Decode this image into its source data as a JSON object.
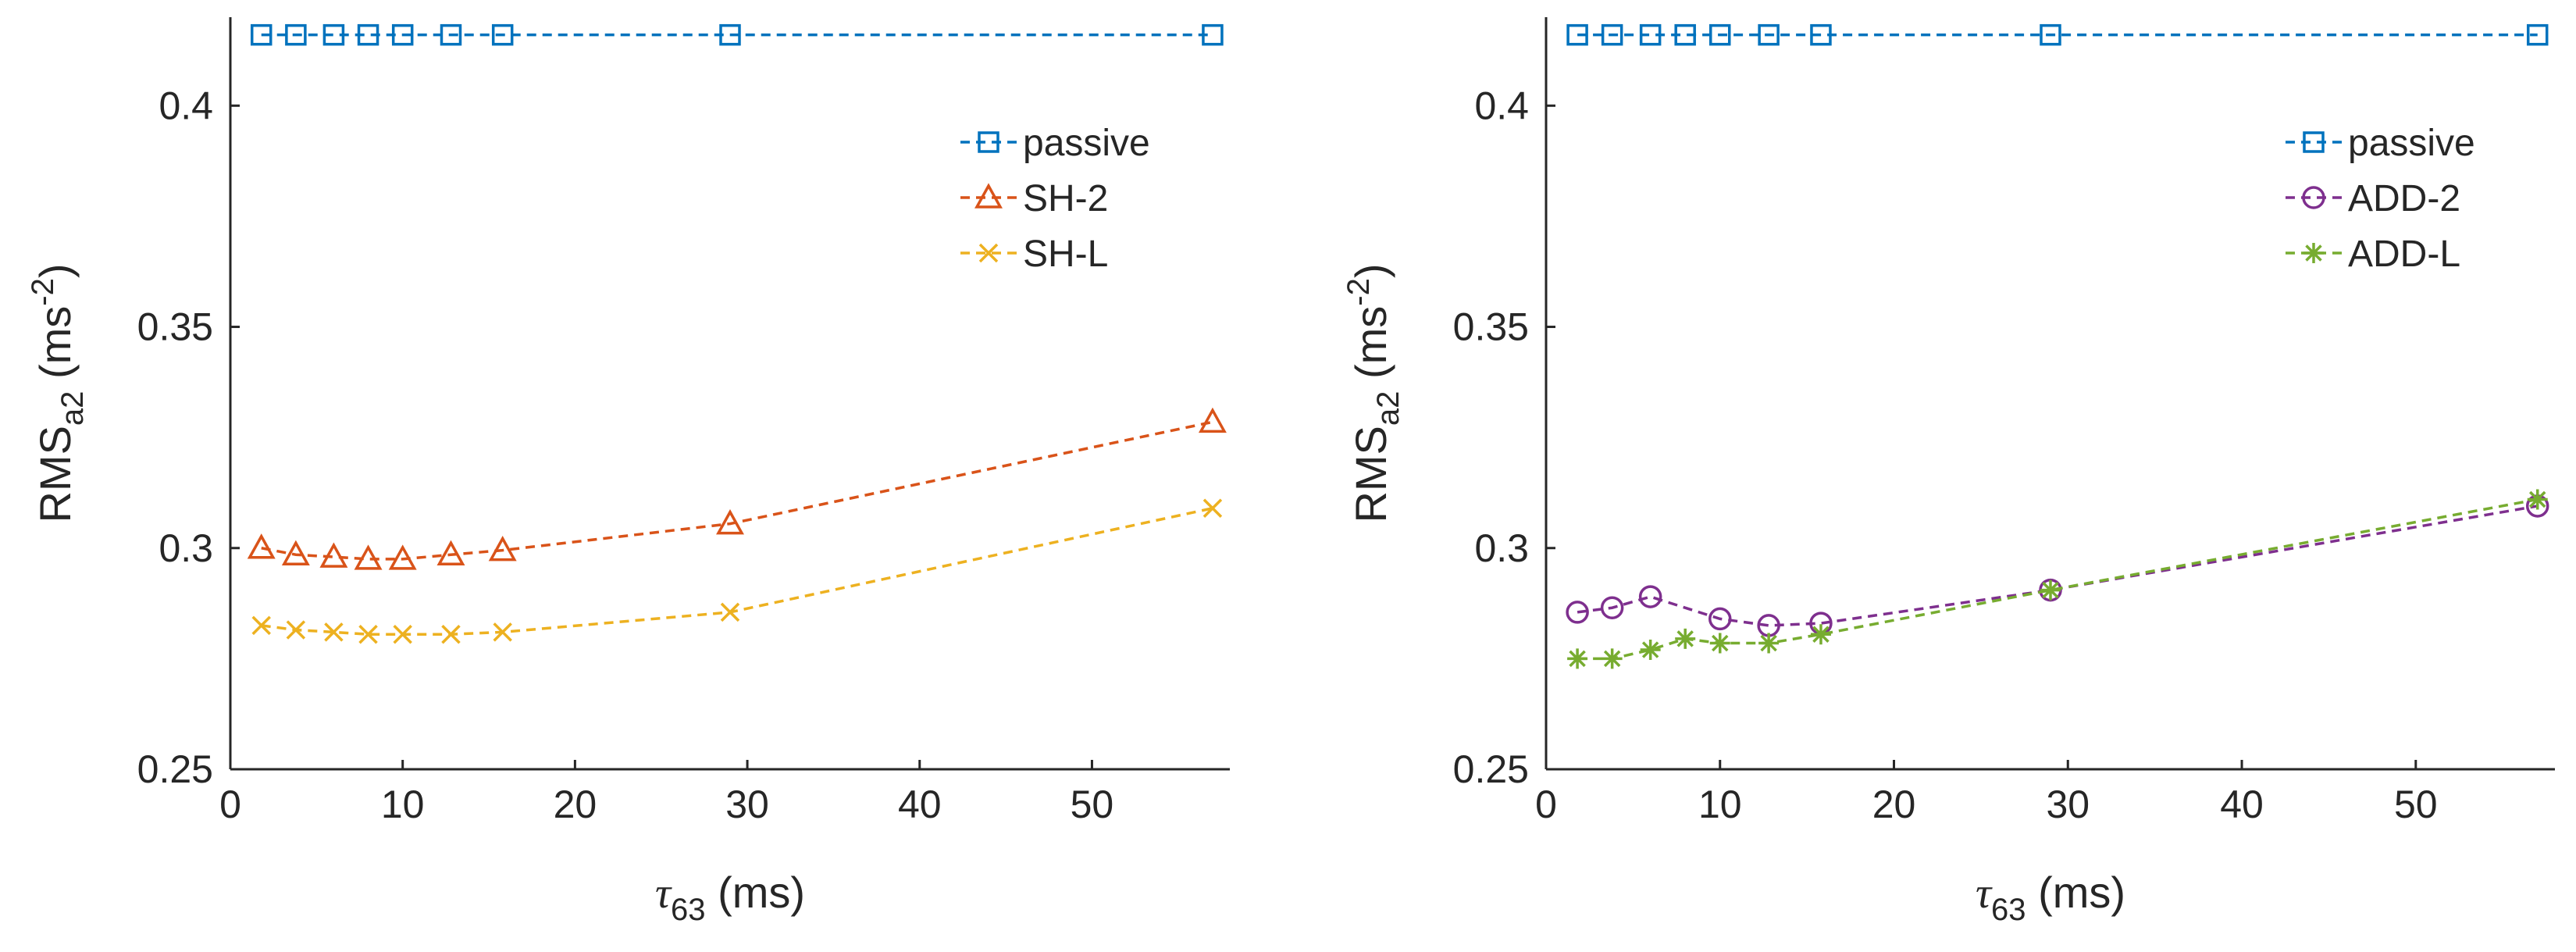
{
  "chart_data": [
    {
      "type": "line",
      "xlabel": "τ63 (ms)",
      "xlabel_parts": {
        "symbol": "τ",
        "sub": "63",
        "rest": " (ms)"
      },
      "ylabel": "RMSa2 (ms-2)",
      "ylabel_parts": {
        "base": "RMS",
        "sub": "a2",
        "unit_open": " (ms",
        "sup": "-2",
        "unit_close": ")"
      },
      "xlim": [
        0,
        58
      ],
      "ylim": [
        0.25,
        0.42
      ],
      "xticks": [
        0,
        10,
        20,
        30,
        40,
        50
      ],
      "yticks": [
        0.25,
        0.3,
        0.35,
        0.4
      ],
      "xtick_labels": [
        "0",
        "10",
        "20",
        "30",
        "40",
        "50"
      ],
      "ytick_labels": [
        "0.25",
        "0.3",
        "0.35",
        "0.4"
      ],
      "grid": false,
      "legend_position": "top-right",
      "series": [
        {
          "name": "passive",
          "color": "#0072BD",
          "marker": "square",
          "x": [
            1.8,
            3.8,
            6,
            8,
            10,
            12.8,
            15.8,
            29,
            57
          ],
          "y": [
            0.416,
            0.416,
            0.416,
            0.416,
            0.416,
            0.416,
            0.416,
            0.416,
            0.416
          ]
        },
        {
          "name": "SH-2",
          "color": "#D95319",
          "marker": "triangle",
          "x": [
            1.8,
            3.8,
            6,
            8,
            10,
            12.8,
            15.8,
            29,
            57
          ],
          "y": [
            0.3,
            0.2985,
            0.298,
            0.2975,
            0.2975,
            0.2985,
            0.2995,
            0.3055,
            0.3285
          ]
        },
        {
          "name": "SH-L",
          "color": "#EDB120",
          "marker": "x",
          "x": [
            1.8,
            3.8,
            6,
            8,
            10,
            12.8,
            15.8,
            29,
            57
          ],
          "y": [
            0.2825,
            0.2815,
            0.281,
            0.2805,
            0.2805,
            0.2805,
            0.281,
            0.2855,
            0.309
          ]
        }
      ]
    },
    {
      "type": "line",
      "xlabel": "τ63 (ms)",
      "xlabel_parts": {
        "symbol": "τ",
        "sub": "63",
        "rest": " (ms)"
      },
      "ylabel": "RMSa2 (ms-2)",
      "ylabel_parts": {
        "base": "RMS",
        "sub": "a2",
        "unit_open": " (ms",
        "sup": "-2",
        "unit_close": ")"
      },
      "xlim": [
        0,
        58
      ],
      "ylim": [
        0.25,
        0.42
      ],
      "xticks": [
        0,
        10,
        20,
        30,
        40,
        50
      ],
      "yticks": [
        0.25,
        0.3,
        0.35,
        0.4
      ],
      "xtick_labels": [
        "0",
        "10",
        "20",
        "30",
        "40",
        "50"
      ],
      "ytick_labels": [
        "0.25",
        "0.3",
        "0.35",
        "0.4"
      ],
      "grid": false,
      "legend_position": "top-right",
      "series": [
        {
          "name": "passive",
          "color": "#0072BD",
          "marker": "square",
          "x": [
            1.8,
            3.8,
            6,
            8,
            10,
            12.8,
            15.8,
            29,
            57
          ],
          "y": [
            0.416,
            0.416,
            0.416,
            0.416,
            0.416,
            0.416,
            0.416,
            0.416,
            0.416
          ]
        },
        {
          "name": "ADD-2",
          "color": "#7E2F8E",
          "marker": "circle",
          "x": [
            1.8,
            3.8,
            6,
            10,
            12.8,
            15.8,
            29,
            57
          ],
          "y": [
            0.2855,
            0.2865,
            0.289,
            0.284,
            0.2825,
            0.283,
            0.2905,
            0.3095
          ]
        },
        {
          "name": "ADD-L",
          "color": "#77AC30",
          "marker": "asterisk",
          "x": [
            1.8,
            3.8,
            6,
            8,
            10,
            12.8,
            15.8,
            29,
            57
          ],
          "y": [
            0.275,
            0.275,
            0.277,
            0.2795,
            0.2785,
            0.2785,
            0.2805,
            0.2905,
            0.311
          ]
        }
      ]
    }
  ]
}
